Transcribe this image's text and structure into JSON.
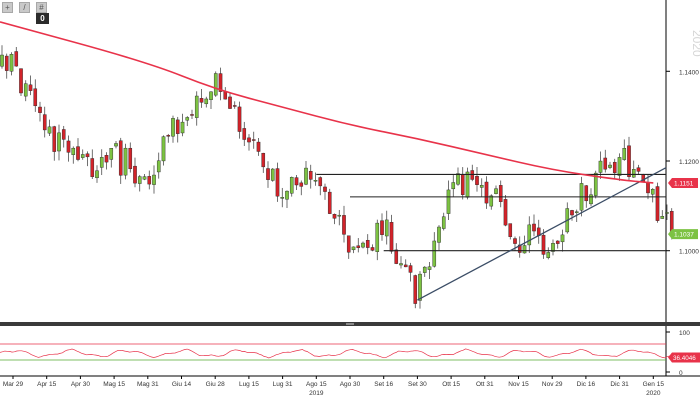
{
  "toolbar": {
    "buttons": [
      {
        "name": "crosshair-icon",
        "glyph": "+"
      },
      {
        "name": "draw-pencil-icon",
        "glyph": "/"
      },
      {
        "name": "settings-icon",
        "glyph": "#"
      }
    ],
    "badge": "0"
  },
  "chart_data": [
    {
      "type": "candlestick",
      "instrument_hint": "EUR/USD daily",
      "xlabel": "",
      "ylabel": "",
      "grid": false,
      "y_axis_side": "right",
      "ylim": [
        1.085,
        1.155
      ],
      "y_ticks": [
        "1.1400",
        "1.1200",
        "1.1000"
      ],
      "x_ticks": [
        "Mar 29",
        "Apr 15",
        "Apr 30",
        "Mag 15",
        "Mag 31",
        "Giu 14",
        "Giu 28",
        "Lug 15",
        "Lug 31",
        "Ago 15",
        "Ago 30",
        "Set 16",
        "Set 30",
        "Ott 15",
        "Ott 31",
        "Nov 15",
        "Nov 29",
        "Dic 16",
        "Dic 31",
        "Gen 15"
      ],
      "year_labels": [
        {
          "text": "2019",
          "under_tick": "Ago 15"
        },
        {
          "text": "2020",
          "under_tick": "Gen 15"
        }
      ],
      "watermark": "2020",
      "price_badges": [
        {
          "value": "1.1151",
          "color": "#e8334a"
        },
        {
          "value": "1.1037",
          "color": "#7cc242"
        }
      ],
      "path_anchors": [
        {
          "tick": "Mar 29",
          "value": 1.141
        },
        {
          "tick": "Apr 15",
          "value": 1.127
        },
        {
          "tick": "Apr 30",
          "value": 1.118
        },
        {
          "tick": "Mag 15",
          "value": 1.121
        },
        {
          "tick": "Mag 31",
          "value": 1.117
        },
        {
          "tick": "Giu 14",
          "value": 1.13
        },
        {
          "tick": "Giu 28",
          "value": 1.139
        },
        {
          "tick": "Lug 15",
          "value": 1.125
        },
        {
          "tick": "Lug 31",
          "value": 1.111
        },
        {
          "tick": "Ago 15",
          "value": 1.118
        },
        {
          "tick": "Ago 30",
          "value": 1.099
        },
        {
          "tick": "Set 16",
          "value": 1.105
        },
        {
          "tick": "Set 30",
          "value": 1.09
        },
        {
          "tick": "Ott 15",
          "value": 1.115
        },
        {
          "tick": "Ott 31",
          "value": 1.114
        },
        {
          "tick": "Nov 15",
          "value": 1.103
        },
        {
          "tick": "Nov 29",
          "value": 1.101
        },
        {
          "tick": "Dic 16",
          "value": 1.114
        },
        {
          "tick": "Dic 31",
          "value": 1.121
        },
        {
          "tick": "Gen 15",
          "value": 1.111
        }
      ],
      "final_value": 1.1037,
      "series": [
        {
          "kind": "moving-average",
          "color": "#e8334a",
          "points": [
            {
              "tick": "Mar 29",
              "value": 1.151
            },
            {
              "tick": "Mag 31",
              "value": 1.142
            },
            {
              "tick": "Giu 28",
              "value": 1.136
            },
            {
              "tick": "Lug 31",
              "value": 1.132
            },
            {
              "tick": "Ago 30",
              "value": 1.128
            },
            {
              "tick": "Set 30",
              "value": 1.125
            },
            {
              "tick": "Ott 31",
              "value": 1.1215
            },
            {
              "tick": "Nov 29",
              "value": 1.118
            },
            {
              "tick": "Dic 31",
              "value": 1.1158
            },
            {
              "tick": "Gen 15",
              "value": 1.1151
            }
          ]
        }
      ],
      "annotations": [
        {
          "kind": "horizontal-line",
          "value": 1.117,
          "from": "Ago 15",
          "to": "end"
        },
        {
          "kind": "horizontal-line",
          "value": 1.112,
          "from": "Ago 30",
          "to": "end"
        },
        {
          "kind": "horizontal-line",
          "value": 1.1,
          "from": "Set 16",
          "to": "end"
        },
        {
          "kind": "trendline",
          "from": {
            "tick": "Set 30",
            "value": 1.089
          },
          "to": {
            "tick": "end",
            "value": 1.1185
          }
        }
      ]
    },
    {
      "type": "line",
      "indicator": "oscillator",
      "xlabel": "",
      "ylabel": "",
      "ylim": [
        0,
        100
      ],
      "y_ticks": [
        "100",
        "0"
      ],
      "level_lines": [
        {
          "value": 70,
          "color": "#e8334a"
        },
        {
          "value": 30,
          "color": "#55aa33"
        }
      ],
      "series_color": "#e8334a",
      "value_badge": {
        "value": "36.4046",
        "color": "#e8334a"
      },
      "oscillation_range": [
        35,
        58
      ]
    }
  ]
}
